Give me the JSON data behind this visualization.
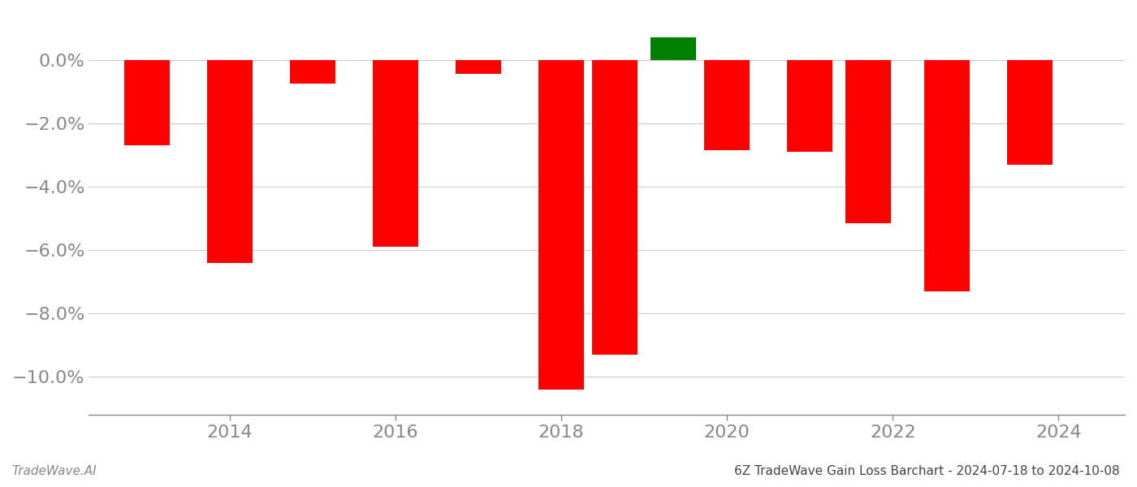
{
  "x_positions": [
    2013,
    2014,
    2015,
    2016,
    2017,
    2018,
    2018.65,
    2019.35,
    2020,
    2021,
    2021.7,
    2022.65,
    2023.65
  ],
  "values": [
    -2.7,
    -6.4,
    -0.75,
    -5.9,
    -0.45,
    -10.4,
    -9.3,
    0.7,
    -2.85,
    -2.9,
    -5.15,
    -7.3,
    -3.3
  ],
  "bar_colors": [
    "#ff0000",
    "#ff0000",
    "#ff0000",
    "#ff0000",
    "#ff0000",
    "#ff0000",
    "#ff0000",
    "#008000",
    "#ff0000",
    "#ff0000",
    "#ff0000",
    "#ff0000",
    "#ff0000"
  ],
  "bar_width": 0.55,
  "title": "6Z TradeWave Gain Loss Barchart - 2024-07-18 to 2024-10-08",
  "watermark": "TradeWave.AI",
  "ylim": [
    -11.2,
    1.5
  ],
  "yticks": [
    0.0,
    -2.0,
    -4.0,
    -6.0,
    -8.0,
    -10.0
  ],
  "ytick_labels": [
    "0.0%",
    "−2.0%",
    "−4.0%",
    "−6.0%",
    "−8.0%",
    "−10.0%"
  ],
  "xticks": [
    2014,
    2016,
    2018,
    2020,
    2022,
    2024
  ],
  "xlim": [
    2012.3,
    2024.8
  ],
  "background_color": "#ffffff",
  "grid_color": "#cccccc",
  "axis_label_color": "#888888",
  "title_color": "#444444",
  "watermark_color": "#888888",
  "tick_fontsize": 16,
  "title_fontsize": 11,
  "watermark_fontsize": 11
}
